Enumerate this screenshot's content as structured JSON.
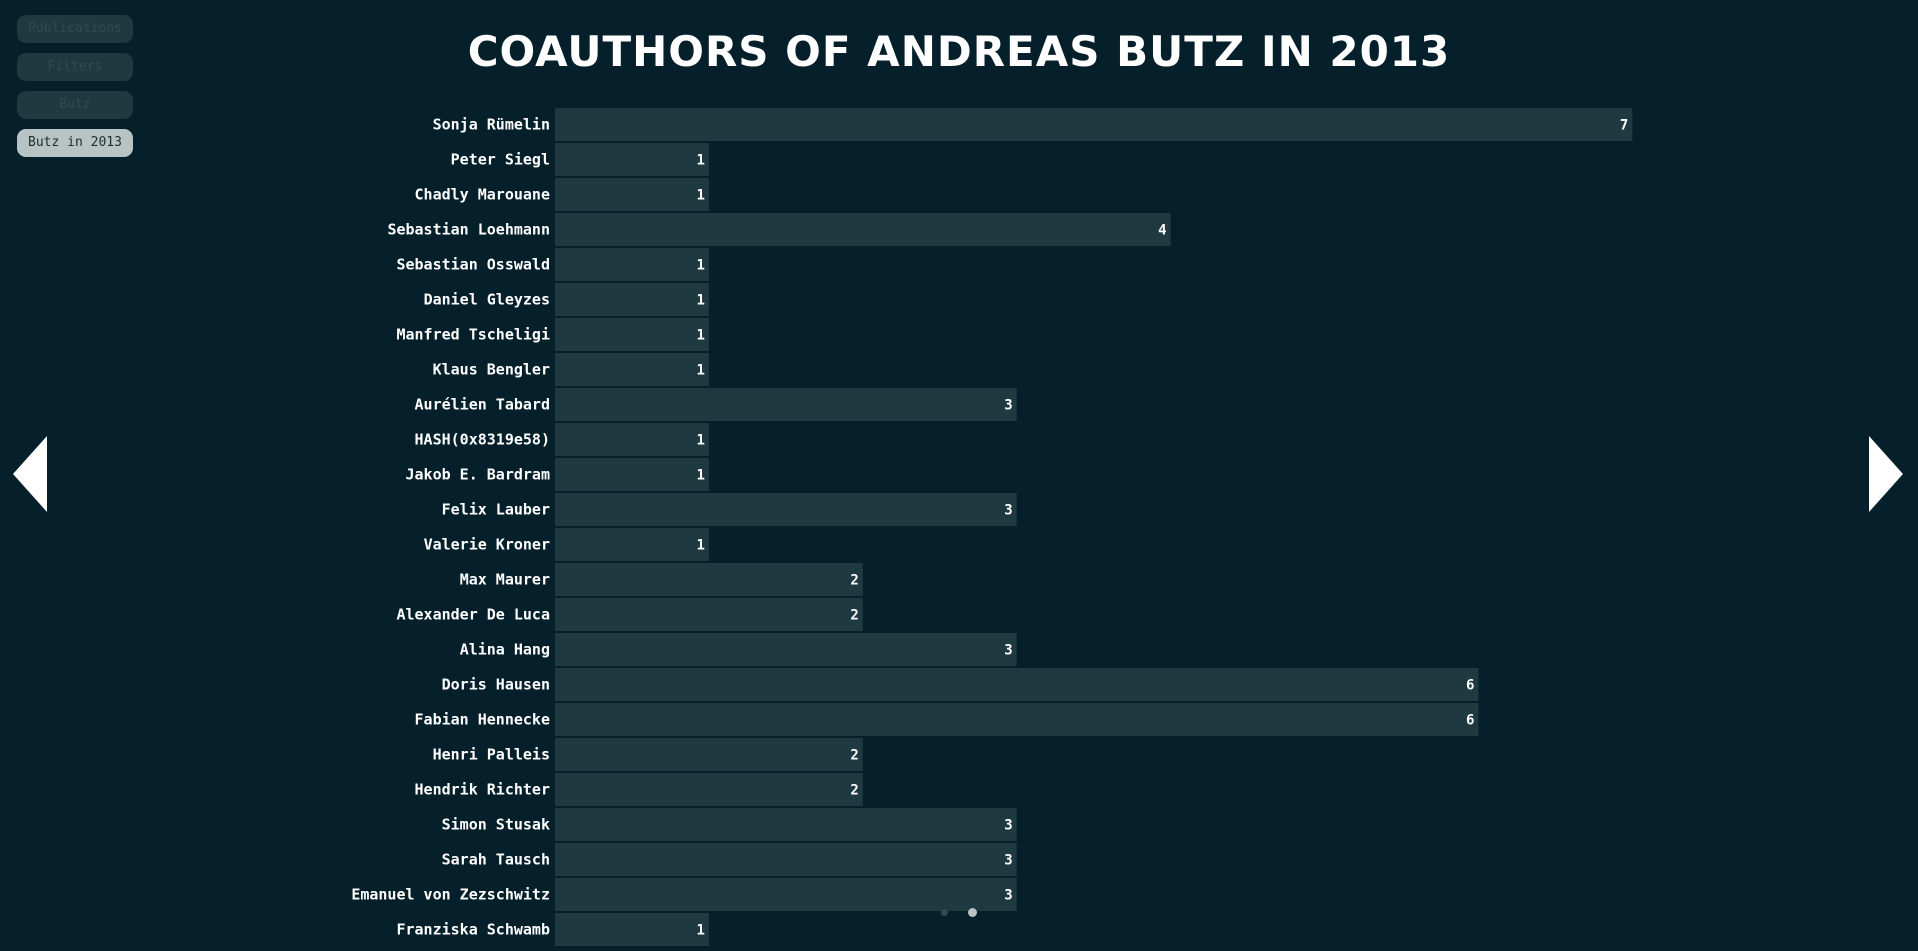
{
  "nav": {
    "items": [
      {
        "label": "Publications",
        "active": false
      },
      {
        "label": "Filters",
        "active": false
      },
      {
        "label": "Butz",
        "active": false
      },
      {
        "label": "Butz in 2013",
        "active": true
      }
    ]
  },
  "controls": {
    "prev_icon": "triangle-left-icon",
    "next_icon": "triangle-right-icon"
  },
  "colors": {
    "background": "#05202a",
    "bar": "#1e3a40",
    "text": "#ffffff"
  },
  "chart_data": {
    "type": "bar",
    "orientation": "horizontal",
    "title": "COAUTHORS OF ANDREAS BUTZ IN 2013",
    "categories": [
      "Sonja Rümelin",
      "Peter Siegl",
      "Chadly Marouane",
      "Sebastian Loehmann",
      "Sebastian Osswald",
      "Daniel Gleyzes",
      "Manfred Tscheligi",
      "Klaus Bengler",
      "Aurélien Tabard",
      "HASH(0x8319e58)",
      "Jakob E. Bardram",
      "Felix Lauber",
      "Valerie Kroner",
      "Max Maurer",
      "Alexander De Luca",
      "Alina Hang",
      "Doris Hausen",
      "Fabian Hennecke",
      "Henri Palleis",
      "Hendrik Richter",
      "Simon Stusak",
      "Sarah Tausch",
      "Emanuel von Zezschwitz",
      "Franziska Schwamb"
    ],
    "values": [
      7,
      1,
      1,
      4,
      1,
      1,
      1,
      1,
      3,
      1,
      1,
      3,
      1,
      2,
      2,
      3,
      6,
      6,
      2,
      2,
      3,
      3,
      3,
      1
    ],
    "xlim": [
      0,
      7
    ],
    "grid": false,
    "legend": "none",
    "data_labels": "inside-end"
  }
}
